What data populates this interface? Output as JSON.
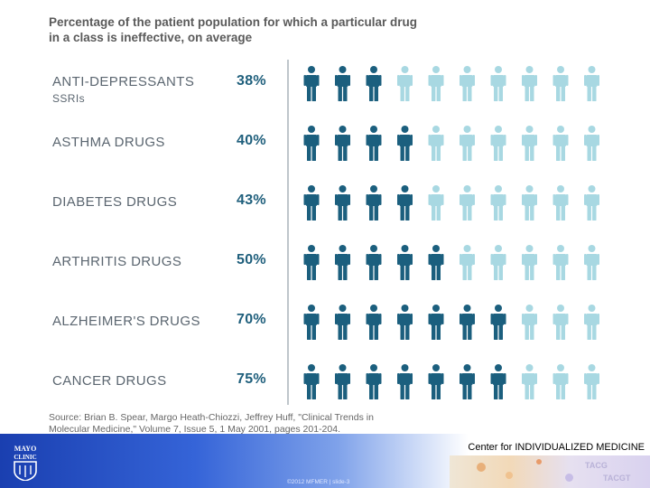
{
  "title": {
    "line1": "Percentage of the patient population for which a particular drug",
    "line2": "in a class is ineffective, on average"
  },
  "chart_data": {
    "type": "pictograph",
    "title": "Percentage of the patient population for which a particular drug in a class is ineffective, on average",
    "icons_per_row": 10,
    "unit": "percent",
    "rows": [
      {
        "label": "ANTI-DEPRESSANTS",
        "sublabel": "SSRIs",
        "value": 38,
        "display": "38%"
      },
      {
        "label": "ASTHMA DRUGS",
        "sublabel": "",
        "value": 40,
        "display": "40%"
      },
      {
        "label": "DIABETES DRUGS",
        "sublabel": "",
        "value": 43,
        "display": "43%"
      },
      {
        "label": "ARTHRITIS DRUGS",
        "sublabel": "",
        "value": 50,
        "display": "50%"
      },
      {
        "label": "ALZHEIMER'S DRUGS",
        "sublabel": "",
        "value": 70,
        "display": "70%"
      },
      {
        "label": "CANCER DRUGS",
        "sublabel": "",
        "value": 75,
        "display": "75%"
      }
    ],
    "colors": {
      "ineffective": "#1b5f7e",
      "effective": "#a8d8e2"
    }
  },
  "source": {
    "line1": "Source: Brian B. Spear, Margo Heath-Chiozzi, Jeffrey Huff, \"Clinical Trends in",
    "line2": "Molecular Medicine,\" Volume 7, Issue 5, 1 May 2001, pages 201-204."
  },
  "footer": {
    "center_name": "Center for INDIVIDUALIZED MEDICINE",
    "slide_text": "©2012 MFMER  |  slide-3",
    "logo_line1": "MAYO",
    "logo_line2": "CLINIC",
    "accent_color": "#1a3fb0"
  }
}
